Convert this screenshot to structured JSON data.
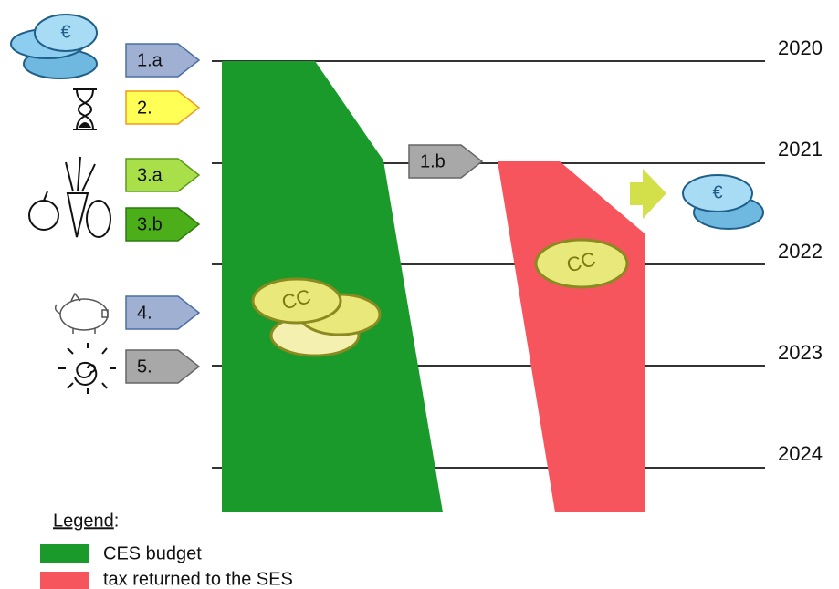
{
  "timeline": {
    "years": [
      "2020",
      "2021",
      "2022",
      "2023",
      "2024"
    ]
  },
  "tags": [
    "1.a",
    "2.",
    "3.a",
    "3.b",
    "4.",
    "5.",
    "1.b"
  ],
  "coins": {
    "euro_symbol": "€",
    "cc_label": "CC"
  },
  "legend": {
    "title": "Legend",
    "title_suffix": ":",
    "items": [
      "CES budget",
      "tax returned to the SES"
    ]
  }
}
